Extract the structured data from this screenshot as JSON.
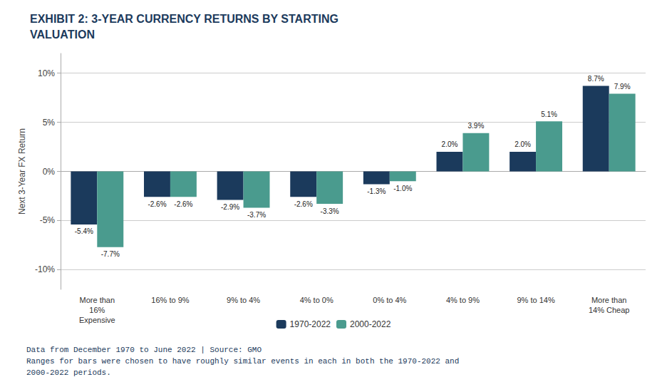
{
  "chart_data": {
    "type": "bar",
    "title": "EXHIBIT 2: 3-YEAR CURRENCY RETURNS BY STARTING\nVALUATION",
    "ylabel": "Next 3-Year FX Return",
    "categories": [
      "More than\n16%\nExpensive",
      "16% to 9%",
      "9% to 4%",
      "4% to 0%",
      "0% to 4%",
      "4% to 9%",
      "9% to 14%",
      "More than\n14% Cheap"
    ],
    "series": [
      {
        "name": "1970-2022",
        "color": "#1b3a5c",
        "values": [
          -5.4,
          -2.6,
          -2.9,
          -2.6,
          -1.3,
          2.0,
          2.0,
          8.7
        ],
        "value_labels": [
          "-5.4%",
          "-2.6%",
          "-2.9%",
          "-2.6%",
          "-1.3%",
          "2.0%",
          "2.0%",
          "8.7%"
        ]
      },
      {
        "name": "2000-2022",
        "color": "#4a9b8e",
        "values": [
          -7.7,
          -2.6,
          -3.7,
          -3.3,
          -1.0,
          3.9,
          5.1,
          7.9
        ],
        "value_labels": [
          "-7.7%",
          "-2.6%",
          "-3.7%",
          "-3.3%",
          "-1.0%",
          "3.9%",
          "5.1%",
          "7.9%"
        ]
      }
    ],
    "ylim": [
      -12,
      12
    ],
    "yticks": [
      {
        "value": -10,
        "label": "-10%"
      },
      {
        "value": -5,
        "label": "-5%"
      },
      {
        "value": 0,
        "label": "0%"
      },
      {
        "value": 5,
        "label": "5%"
      },
      {
        "value": 10,
        "label": "10%"
      }
    ],
    "grid": true,
    "legend": "bottom",
    "data_labels": true,
    "annotations": [
      "Data from December 1970 to June 2022 | Source: GMO",
      "Ranges for bars were chosen to have roughly similar events in each in both the 1970-2022 and",
      "2000-2022 periods."
    ]
  }
}
